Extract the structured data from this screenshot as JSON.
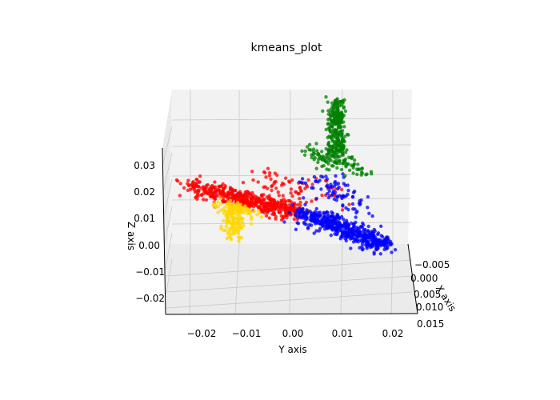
{
  "chart_data": {
    "type": "scatter",
    "projection": "3d",
    "title": "kmeans_plot",
    "xlabel": "X axis",
    "ylabel": "Y axis",
    "zlabel": "Z axis",
    "x_ticks": [
      "−0.005",
      "0.000",
      "0.005",
      "0.010",
      "0.015"
    ],
    "y_ticks": [
      "−0.02",
      "−0.01",
      "0.00",
      "0.01",
      "0.02"
    ],
    "z_ticks": [
      "0.03",
      "0.02",
      "0.01",
      "0.00",
      "−0.01",
      "−0.02"
    ],
    "y_range": [
      -0.025,
      0.025
    ],
    "z_range": [
      -0.025,
      0.033
    ],
    "grid": true,
    "pane_color": "#f2f2f2",
    "clusters": [
      {
        "color": "#ff0000",
        "arms": [
          {
            "from": [
              -0.022,
              0.021
            ],
            "to": [
              0.001,
              0.011
            ],
            "n": 520,
            "spread": 0.0016
          },
          {
            "from": [
              -0.008,
              0.024
            ],
            "to": [
              0.009,
              0.018
            ],
            "n": 70,
            "spread": 0.0022
          }
        ]
      },
      {
        "color": "#0000ff",
        "arms": [
          {
            "from": [
              0.002,
              0.011
            ],
            "to": [
              0.02,
              -0.001
            ],
            "n": 520,
            "spread": 0.0016
          },
          {
            "from": [
              0.004,
              0.024
            ],
            "to": [
              0.016,
              0.012
            ],
            "n": 80,
            "spread": 0.0022
          }
        ]
      },
      {
        "color": "#008000",
        "arms": [
          {
            "from": [
              0.01,
              0.052
            ],
            "to": [
              0.01,
              0.032
            ],
            "n": 260,
            "spread": 0.0009
          },
          {
            "from": [
              0.003,
              0.034
            ],
            "to": [
              0.015,
              0.027
            ],
            "n": 110,
            "spread": 0.0018
          }
        ]
      },
      {
        "color": "#ffd700",
        "arms": [
          {
            "from": [
              -0.013,
              0.014
            ],
            "to": [
              -0.012,
              0.002
            ],
            "n": 130,
            "spread": 0.0011
          },
          {
            "from": [
              -0.015,
              0.013
            ],
            "to": [
              -0.008,
              0.011
            ],
            "n": 70,
            "spread": 0.0011
          }
        ]
      }
    ]
  }
}
